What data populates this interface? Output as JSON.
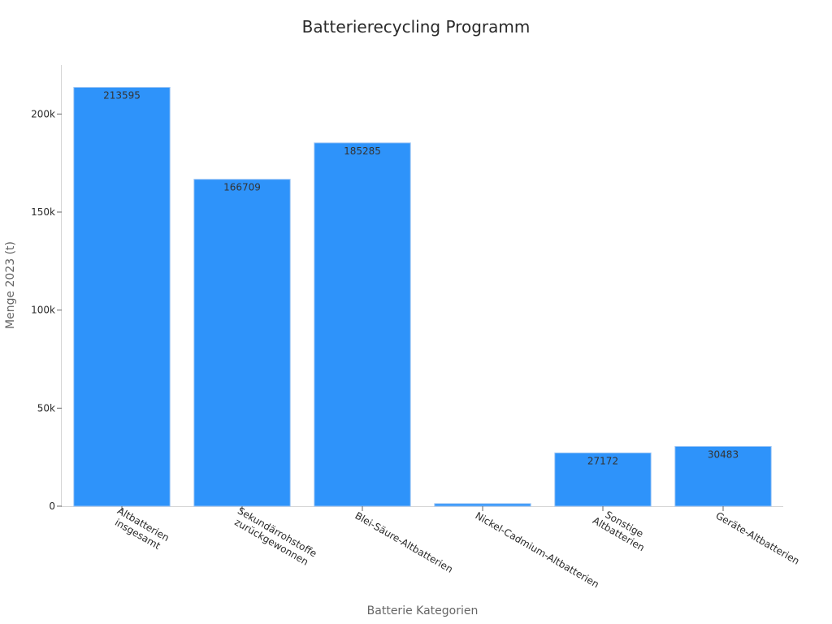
{
  "chart_data": {
    "type": "bar",
    "title": "Batterierecycling Programm",
    "xlabel": "Batterie Kategorien",
    "ylabel": "Menge 2023 (t)",
    "categories": [
      [
        "Altbatterien",
        "insgesamt"
      ],
      [
        "Sekundärrohstoffe",
        "zurückgewonnen"
      ],
      [
        "Blei-Säure-Altbatterien"
      ],
      [
        "Nickel-Cadmium-Altbatterien"
      ],
      [
        "Sonstige",
        "Altbatterien"
      ],
      [
        "Geräte-Altbatterien"
      ]
    ],
    "values": [
      213595,
      166709,
      185285,
      1300,
      27172,
      30483
    ],
    "data_labels": [
      "213595",
      "166709",
      "185285",
      "",
      "27172",
      "30483"
    ],
    "ylim": [
      0,
      225000
    ],
    "yticks": [
      0,
      50000,
      100000,
      150000,
      200000
    ],
    "ytick_labels": [
      "0",
      "50k",
      "100k",
      "150k",
      "200k"
    ],
    "grid": false,
    "legend": "none",
    "bar_color": "#2e93fa"
  }
}
